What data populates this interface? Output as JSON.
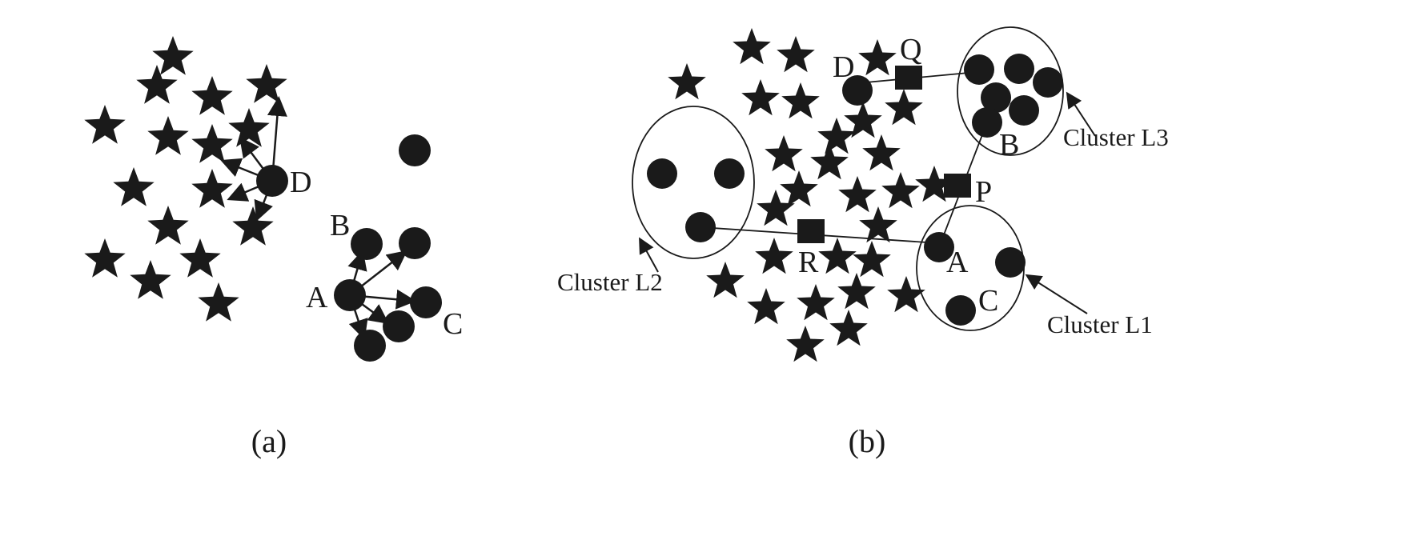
{
  "panels": [
    {
      "caption": "(a)",
      "point_labels": [
        "D",
        "B",
        "A",
        "C"
      ]
    },
    {
      "caption": "(b)",
      "point_labels": [
        "D",
        "Q",
        "B",
        "P",
        "A",
        "C",
        "R"
      ],
      "cluster_labels": [
        "Cluster L3",
        "Cluster L2",
        "Cluster L1"
      ]
    }
  ],
  "colors": {
    "ink": "#1a1a1a",
    "background": "#ffffff"
  },
  "legend_shapes": [
    "star",
    "circle",
    "square"
  ]
}
